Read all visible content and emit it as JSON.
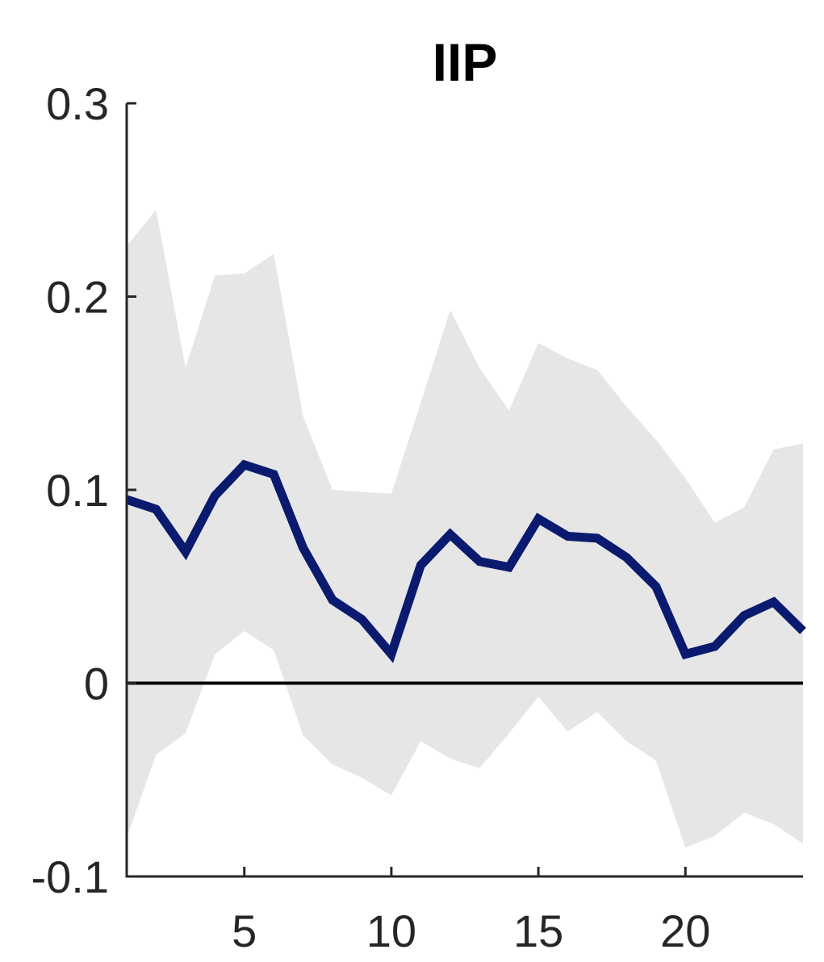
{
  "chart_data": {
    "type": "line",
    "title": "IIP",
    "xlabel": "",
    "ylabel": "",
    "xlim": [
      1,
      24
    ],
    "ylim": [
      -0.1,
      0.3
    ],
    "xticks": [
      5,
      10,
      15,
      20
    ],
    "yticks": [
      -0.1,
      0,
      0.1,
      0.2,
      0.3
    ],
    "ytick_labels": [
      "-0.1",
      "0",
      "0.1",
      "0.2",
      "0.3"
    ],
    "xtick_labels": [
      "5",
      "10",
      "15",
      "20"
    ],
    "zero_line": true,
    "grid": false,
    "x": [
      1,
      2,
      3,
      4,
      5,
      6,
      7,
      8,
      9,
      10,
      11,
      12,
      13,
      14,
      15,
      16,
      17,
      18,
      19,
      20,
      21,
      22,
      23,
      24
    ],
    "series": [
      {
        "values": [
          0.095,
          0.09,
          0.068,
          0.097,
          0.113,
          0.108,
          0.07,
          0.043,
          0.033,
          0.015,
          0.061,
          0.077,
          0.063,
          0.06,
          0.085,
          0.076,
          0.075,
          0.065,
          0.05,
          0.015,
          0.019,
          0.035,
          0.042,
          0.027
        ],
        "color": "#0a1a6e"
      }
    ],
    "band": {
      "lower": [
        -0.08,
        -0.037,
        -0.026,
        0.015,
        0.027,
        0.017,
        -0.027,
        -0.042,
        -0.049,
        -0.058,
        -0.03,
        -0.039,
        -0.044,
        -0.026,
        -0.007,
        -0.025,
        -0.015,
        -0.03,
        -0.04,
        -0.085,
        -0.079,
        -0.067,
        -0.073,
        -0.083
      ],
      "upper": [
        0.226,
        0.245,
        0.163,
        0.211,
        0.212,
        0.222,
        0.138,
        0.1,
        0.099,
        0.098,
        0.145,
        0.193,
        0.163,
        0.141,
        0.176,
        0.168,
        0.162,
        0.143,
        0.126,
        0.106,
        0.083,
        0.091,
        0.121,
        0.124
      ],
      "color": "#e6e6e6"
    },
    "axis_color": "#262626"
  }
}
